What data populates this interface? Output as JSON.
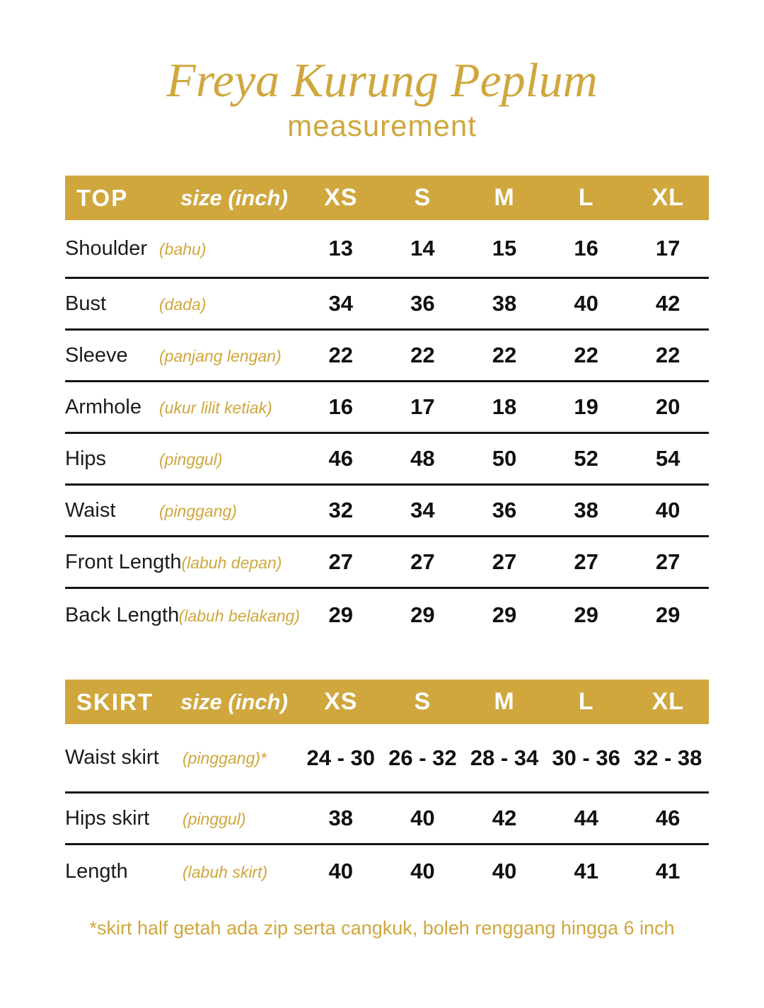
{
  "page": {
    "title": "Freya Kurung Peplum",
    "subtitle": "measurement",
    "footnote": "*skirt half getah ada zip serta cangkuk, boleh renggang hingga 6 inch"
  },
  "colors": {
    "gold": "#cfa73d",
    "header_text": "#ffffff",
    "body_text": "#1b1b1b"
  },
  "tables": [
    {
      "section": "TOP",
      "size_label": "size (inch)",
      "sizes": [
        "XS",
        "S",
        "M",
        "L",
        "XL"
      ],
      "rows": [
        {
          "label": "Shoulder",
          "malay": "(bahu)",
          "values": [
            "13",
            "14",
            "15",
            "16",
            "17"
          ]
        },
        {
          "label": "Bust",
          "malay": "(dada)",
          "values": [
            "34",
            "36",
            "38",
            "40",
            "42"
          ]
        },
        {
          "label": "Sleeve",
          "malay": "(panjang lengan)",
          "values": [
            "22",
            "22",
            "22",
            "22",
            "22"
          ]
        },
        {
          "label": "Armhole",
          "malay": "(ukur lilit ketiak)",
          "values": [
            "16",
            "17",
            "18",
            "19",
            "20"
          ]
        },
        {
          "label": "Hips",
          "malay": "(pinggul)",
          "values": [
            "46",
            "48",
            "50",
            "52",
            "54"
          ]
        },
        {
          "label": "Waist",
          "malay": "(pinggang)",
          "values": [
            "32",
            "34",
            "36",
            "38",
            "40"
          ]
        },
        {
          "label": "Front Length",
          "malay": "(labuh depan)",
          "values": [
            "27",
            "27",
            "27",
            "27",
            "27"
          ]
        },
        {
          "label": "Back Length",
          "malay": "(labuh belakang)",
          "values": [
            "29",
            "29",
            "29",
            "29",
            "29"
          ]
        }
      ]
    },
    {
      "section": "SKIRT",
      "size_label": "size (inch)",
      "sizes": [
        "XS",
        "S",
        "M",
        "L",
        "XL"
      ],
      "rows": [
        {
          "label": "Waist skirt",
          "malay": "(pinggang)*",
          "values": [
            "24 - 30",
            "26 - 32",
            "28 - 34",
            "30 - 36",
            "32 - 38"
          ]
        },
        {
          "label": "Hips skirt",
          "malay": "(pinggul)",
          "values": [
            "38",
            "40",
            "42",
            "44",
            "46"
          ]
        },
        {
          "label": "Length",
          "malay": "(labuh skirt)",
          "values": [
            "40",
            "40",
            "40",
            "41",
            "41"
          ]
        }
      ]
    }
  ]
}
